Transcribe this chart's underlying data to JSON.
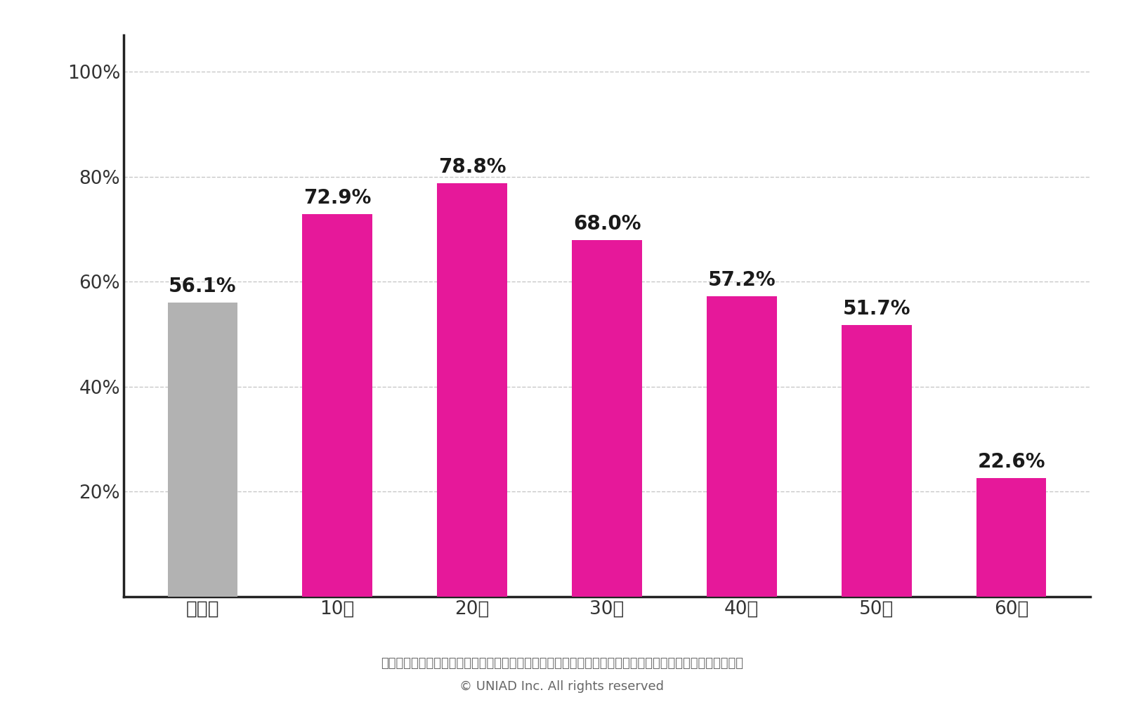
{
  "categories": [
    "全世代",
    "10代",
    "20代",
    "30代",
    "40代",
    "50代",
    "60代"
  ],
  "values": [
    56.1,
    72.9,
    78.8,
    68.0,
    57.2,
    51.7,
    22.6
  ],
  "bar_colors": [
    "#b2b2b2",
    "#e6189a",
    "#e6189a",
    "#e6189a",
    "#e6189a",
    "#e6189a",
    "#e6189a"
  ],
  "value_labels": [
    "56.1%",
    "72.9%",
    "78.8%",
    "68.0%",
    "57.2%",
    "51.7%",
    "22.6%"
  ],
  "yticks": [
    0,
    20,
    40,
    60,
    80,
    100
  ],
  "ytick_labels": [
    "",
    "20%",
    "40%",
    "60%",
    "80%",
    "100%"
  ],
  "ylim": [
    0,
    107
  ],
  "background_color": "#ffffff",
  "bar_label_fontsize": 20,
  "tick_label_fontsize": 19,
  "axis_label_color": "#333333",
  "grid_color": "#c8c8c8",
  "spine_color": "#222222",
  "footnote1": "参照：総務省情報通信政策研究所｜令和５年度情報通信メディアの利用時間と情報行動に関する調査報告書",
  "footnote2": "© UNIAD Inc. All rights reserved",
  "footnote_fontsize": 13,
  "footnote_color": "#666666"
}
